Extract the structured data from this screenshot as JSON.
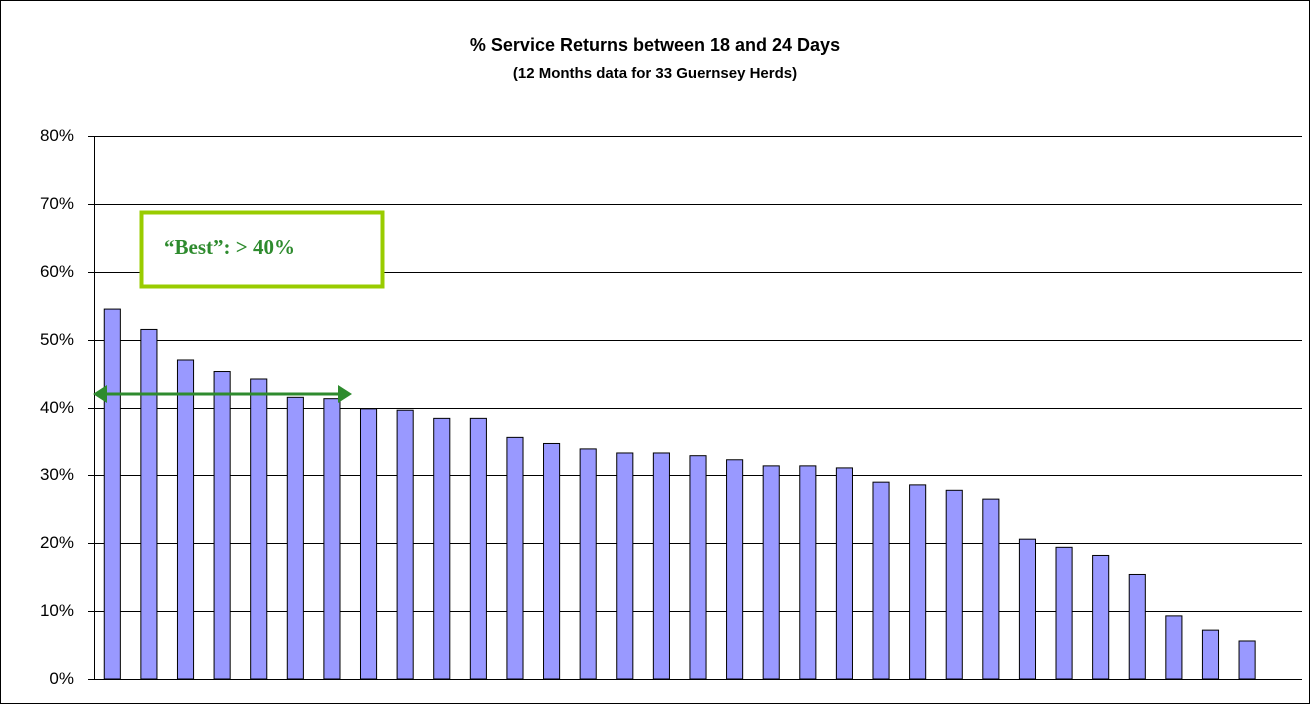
{
  "chart_data": {
    "type": "bar",
    "title": "% Service Returns between 18 and 24 Days",
    "subtitle": "(12 Months data for 33 Guernsey Herds)",
    "annotation": "“Best”: > 40%",
    "categories": [
      null,
      null,
      null,
      null,
      null,
      null,
      null,
      null,
      null,
      null,
      null,
      null,
      null,
      null,
      null,
      null,
      null,
      null,
      null,
      null,
      null,
      null,
      null,
      null,
      null,
      null,
      null,
      null,
      null,
      null,
      null,
      null,
      null
    ],
    "values": [
      54.5,
      51.5,
      47,
      45.3,
      44.2,
      41.5,
      41.3,
      39.8,
      39.6,
      38.4,
      38.4,
      35.6,
      34.7,
      33.9,
      33.3,
      33.3,
      32.9,
      32.3,
      31.4,
      31.4,
      31.1,
      29,
      28.6,
      27.8,
      26.5,
      20.6,
      19.4,
      18.2,
      15.4,
      9.3,
      7.2,
      5.6,
      0
    ],
    "color": "#9999ff",
    "ylim": [
      0,
      80
    ],
    "yticks": [
      {
        "value": 0,
        "label": "0%"
      },
      {
        "value": 10,
        "label": "10%"
      },
      {
        "value": 20,
        "label": "20%"
      },
      {
        "value": 30,
        "label": "30%"
      },
      {
        "value": 40,
        "label": "40%"
      },
      {
        "value": 50,
        "label": "50%"
      },
      {
        "value": 60,
        "label": "60%"
      },
      {
        "value": 70,
        "label": "70%"
      },
      {
        "value": 80,
        "label": "80%"
      }
    ],
    "grid": true
  }
}
